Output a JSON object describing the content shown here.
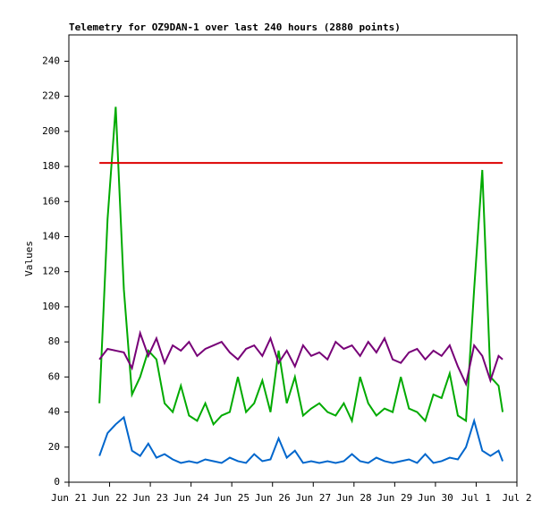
{
  "chart_data": {
    "type": "line",
    "title": "Telemetry for OZ9DAN-1 over last 240 hours (2880 points)",
    "y_label": "Values",
    "x": [
      0.75,
      0.95,
      1.15,
      1.35,
      1.55,
      1.75,
      1.95,
      2.15,
      2.35,
      2.55,
      2.75,
      2.95,
      3.15,
      3.35,
      3.55,
      3.75,
      3.95,
      4.15,
      4.35,
      4.55,
      4.75,
      4.95,
      5.15,
      5.35,
      5.55,
      5.75,
      5.95,
      6.15,
      6.35,
      6.55,
      6.75,
      6.95,
      7.15,
      7.35,
      7.55,
      7.75,
      7.95,
      8.15,
      8.35,
      8.55,
      8.75,
      8.95,
      9.15,
      9.35,
      9.55,
      9.75,
      9.95,
      10.15,
      10.35,
      10.55,
      10.65
    ],
    "series": [
      {
        "color": "#00aa00",
        "values": [
          45,
          150,
          214,
          110,
          50,
          60,
          75,
          70,
          45,
          40,
          55,
          38,
          35,
          45,
          33,
          38,
          40,
          60,
          40,
          45,
          58,
          40,
          75,
          45,
          60,
          38,
          42,
          45,
          40,
          38,
          45,
          35,
          60,
          45,
          38,
          42,
          40,
          60,
          42,
          40,
          35,
          50,
          48,
          62,
          38,
          35,
          110,
          178,
          60,
          55,
          40
        ]
      },
      {
        "color": "#770077",
        "values": [
          70,
          76,
          75,
          74,
          65,
          85,
          72,
          82,
          68,
          78,
          75,
          80,
          72,
          76,
          78,
          80,
          74,
          70,
          76,
          78,
          72,
          82,
          68,
          75,
          66,
          78,
          72,
          74,
          70,
          80,
          76,
          78,
          72,
          80,
          74,
          82,
          70,
          68,
          74,
          76,
          70,
          75,
          72,
          78,
          66,
          56,
          78,
          72,
          58,
          72,
          70
        ]
      },
      {
        "color": "#0066cc",
        "values": [
          15,
          28,
          33,
          37,
          18,
          15,
          22,
          14,
          16,
          13,
          11,
          12,
          11,
          13,
          12,
          11,
          14,
          12,
          11,
          16,
          12,
          13,
          25,
          14,
          18,
          11,
          12,
          11,
          12,
          11,
          12,
          16,
          12,
          11,
          14,
          12,
          11,
          12,
          13,
          11,
          16,
          11,
          12,
          14,
          13,
          20,
          35,
          18,
          15,
          18,
          12
        ]
      },
      {
        "color": "#dd0000",
        "values": [
          182,
          182,
          182,
          182,
          182,
          182,
          182,
          182,
          182,
          182,
          182,
          182,
          182,
          182,
          182,
          182,
          182,
          182,
          182,
          182,
          182,
          182,
          182,
          182,
          182,
          182,
          182,
          182,
          182,
          182,
          182,
          182,
          182,
          182,
          182,
          182,
          182,
          182,
          182,
          182,
          182,
          182,
          182,
          182,
          182,
          182,
          182,
          182,
          182,
          182,
          182
        ]
      }
    ],
    "xlim": [
      0,
      11
    ],
    "xticks": [
      {
        "value": 0,
        "label": "Jun 21"
      },
      {
        "value": 1,
        "label": "Jun 22"
      },
      {
        "value": 2,
        "label": "Jun 23"
      },
      {
        "value": 3,
        "label": "Jun 24"
      },
      {
        "value": 4,
        "label": "Jun 25"
      },
      {
        "value": 5,
        "label": "Jun 26"
      },
      {
        "value": 6,
        "label": "Jun 27"
      },
      {
        "value": 7,
        "label": "Jun 28"
      },
      {
        "value": 8,
        "label": "Jun 29"
      },
      {
        "value": 9,
        "label": "Jun 30"
      },
      {
        "value": 10,
        "label": "Jul 1"
      },
      {
        "value": 11,
        "label": "Jul 2"
      }
    ],
    "ylim": [
      0,
      255
    ],
    "yticks": [
      0,
      20,
      40,
      60,
      80,
      100,
      120,
      140,
      160,
      180,
      200,
      220,
      240
    ]
  }
}
